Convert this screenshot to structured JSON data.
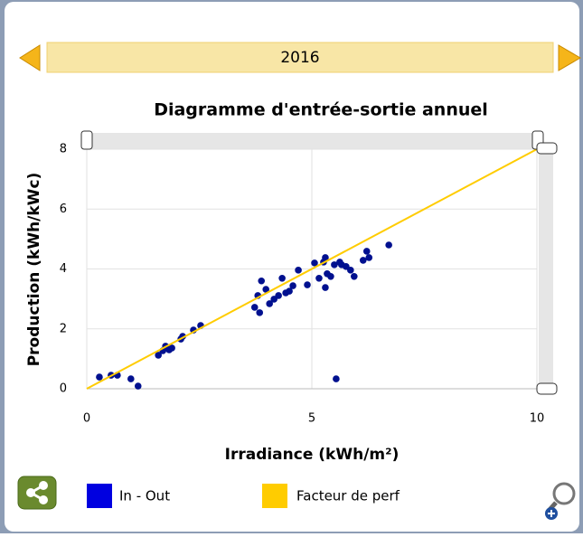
{
  "header": {
    "year": "2016"
  },
  "chart_data": {
    "type": "scatter",
    "title": "Diagramme d'entrée-sortie annuel",
    "x_label": "Irradiance (kWh/m²)",
    "y_label": "Production (kWh/kWc)",
    "xlim": [
      0,
      10
    ],
    "xticks": [
      0,
      5,
      10
    ],
    "ylim": [
      0,
      8
    ],
    "yticks": [
      0,
      2,
      4,
      6,
      8
    ],
    "grid": true,
    "legend": "bottom",
    "series": [
      {
        "name": "In - Out",
        "color": "#0000e0",
        "point_color": "#00108f",
        "type": "scatter",
        "x": [
          0.28,
          0.54,
          0.68,
          0.98,
          1.14,
          1.59,
          1.69,
          1.75,
          1.83,
          1.89,
          2.09,
          2.13,
          2.37,
          2.53,
          3.73,
          3.8,
          3.84,
          3.88,
          3.98,
          4.06,
          4.16,
          4.26,
          4.34,
          4.42,
          4.5,
          4.58,
          4.7,
          4.9,
          5.06,
          5.16,
          5.26,
          5.3,
          5.3,
          5.34,
          5.42,
          5.5,
          5.54,
          5.62,
          5.66,
          5.76,
          5.86,
          5.94,
          6.14,
          6.22,
          6.27,
          6.71
        ],
        "values": [
          0.39,
          0.45,
          0.45,
          0.33,
          0.09,
          1.12,
          1.27,
          1.42,
          1.3,
          1.36,
          1.66,
          1.75,
          1.96,
          2.11,
          2.72,
          3.11,
          2.54,
          3.6,
          3.32,
          2.84,
          2.99,
          3.11,
          3.69,
          3.2,
          3.26,
          3.44,
          3.96,
          3.47,
          4.2,
          3.69,
          4.23,
          4.38,
          3.38,
          3.84,
          3.75,
          4.14,
          0.33,
          4.23,
          4.14,
          4.08,
          3.96,
          3.75,
          4.29,
          4.59,
          4.38,
          4.8
        ]
      },
      {
        "name": "Facteur de perf",
        "color": "#ffcc00",
        "type": "line",
        "x": [
          0,
          10
        ],
        "values": [
          0,
          8
        ]
      }
    ]
  }
}
